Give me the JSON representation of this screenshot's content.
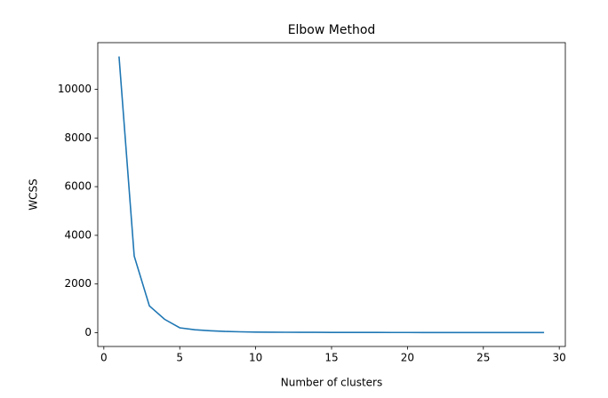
{
  "chart_data": {
    "type": "line",
    "title": "Elbow Method",
    "xlabel": "Number of clusters",
    "ylabel": "WCSS",
    "x": [
      1,
      2,
      3,
      4,
      5,
      6,
      7,
      8,
      9,
      10,
      11,
      12,
      13,
      14,
      15,
      16,
      17,
      18,
      19,
      20,
      21,
      22,
      23,
      24,
      25,
      26,
      27,
      28,
      29
    ],
    "values": [
      11350,
      3150,
      1100,
      550,
      200,
      120,
      80,
      50,
      35,
      25,
      20,
      17,
      15,
      13,
      12,
      11,
      10,
      9,
      8,
      8,
      7,
      7,
      6,
      6,
      6,
      5,
      5,
      5,
      5
    ],
    "color": "#1f77b4",
    "xlim": [
      -0.4,
      30.4
    ],
    "xticks": [
      0,
      5,
      10,
      15,
      20,
      25,
      30
    ],
    "ylim": [
      -567,
      11917
    ],
    "yticks": [
      0,
      2000,
      4000,
      6000,
      8000,
      10000
    ]
  }
}
